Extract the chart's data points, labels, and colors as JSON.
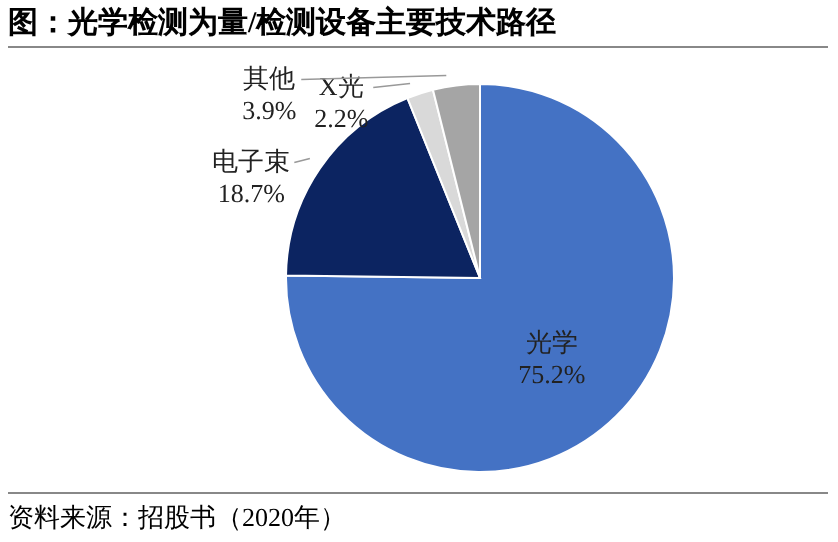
{
  "chart_data": {
    "type": "pie",
    "title": "图：光学检测为量/检测设备主要技术路径",
    "categories": [
      "光学",
      "电子束",
      "X光",
      "其他"
    ],
    "values": [
      75.2,
      18.7,
      2.2,
      3.9
    ],
    "colors": [
      "#4472c4",
      "#0c2461",
      "#d9d9d9",
      "#a5a5a5"
    ],
    "value_labels": [
      "75.2%",
      "18.7%",
      "2.2%",
      "3.9%"
    ],
    "annotations": [
      "资料来源：招股书（2020年）"
    ]
  }
}
